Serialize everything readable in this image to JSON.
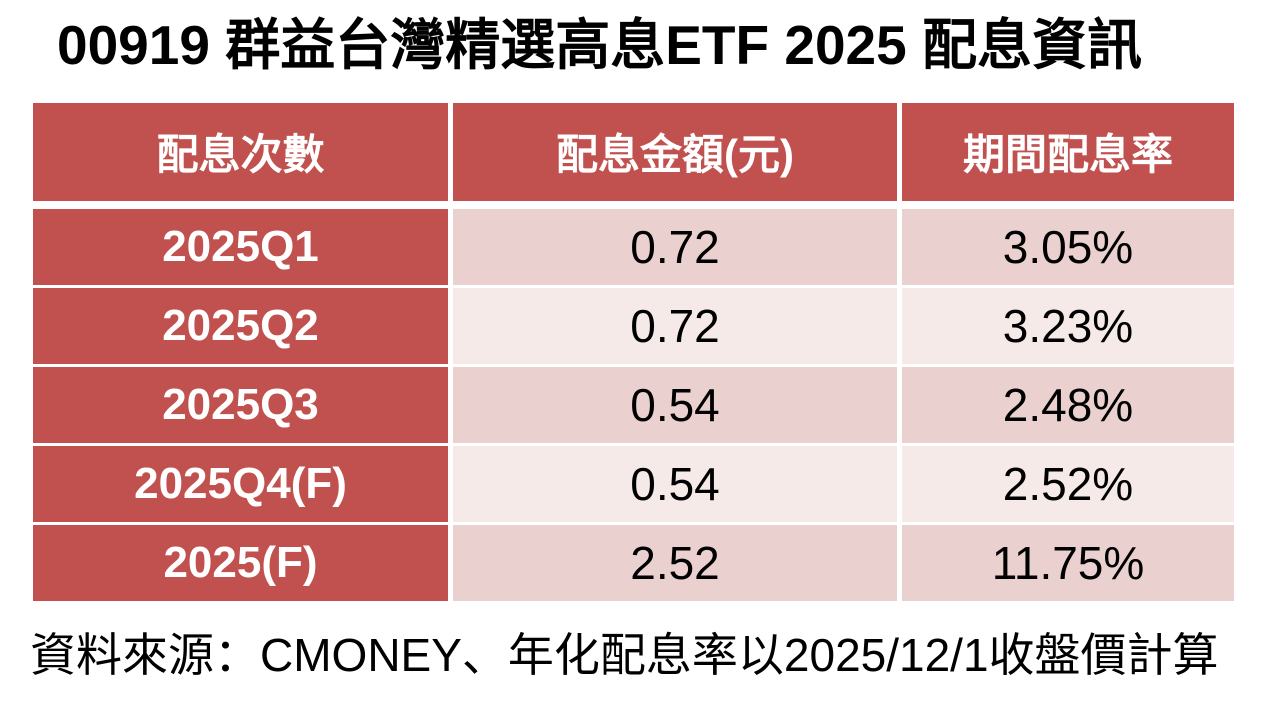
{
  "title": "00919 群益台灣精選高息ETF 2025 配息資訊",
  "table": {
    "headers": [
      "配息次數",
      "配息金額(元)",
      "期間配息率"
    ],
    "rows": [
      {
        "period": "2025Q1",
        "amount": "0.72",
        "yield": "3.05%"
      },
      {
        "period": "2025Q2",
        "amount": "0.72",
        "yield": "3.23%"
      },
      {
        "period": "2025Q3",
        "amount": "0.54",
        "yield": "2.48%"
      },
      {
        "period": "2025Q4(F)",
        "amount": "0.54",
        "yield": "2.52%"
      },
      {
        "period": "2025(F)",
        "amount": "2.52",
        "yield": "11.75%"
      }
    ]
  },
  "footer": "資料來源：CMONEY、年化配息率以2025/12/1收盤價計算",
  "colors": {
    "header_red": "#C1514E",
    "row_dark": "#EAD1D0",
    "row_light": "#F6EAE9"
  }
}
